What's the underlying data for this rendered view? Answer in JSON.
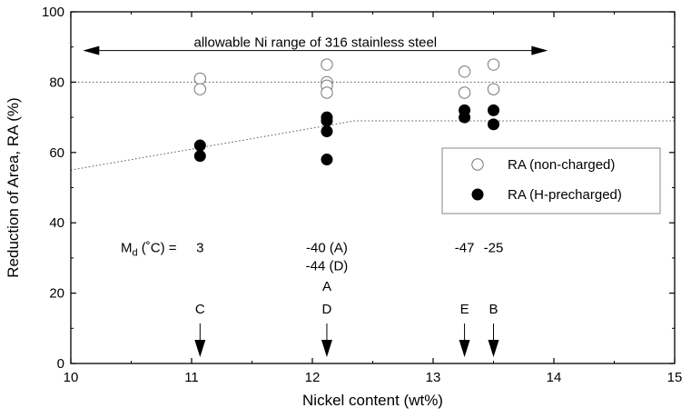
{
  "chart_data": {
    "type": "scatter",
    "xlabel": "Nickel content (wt%)",
    "ylabel": "Reduction of Area, RA (%)",
    "xlim": [
      10,
      15
    ],
    "ylim": [
      0,
      100
    ],
    "x_ticks": [
      "10",
      "11",
      "12",
      "13",
      "14",
      "15"
    ],
    "y_ticks": [
      "0",
      "20",
      "40",
      "60",
      "80",
      "100"
    ],
    "grid": false,
    "legend_position": "right",
    "series": [
      {
        "name": "RA (non-charged)",
        "marker": "open-circle",
        "points": [
          {
            "x": 11.07,
            "y": 81
          },
          {
            "x": 11.07,
            "y": 78
          },
          {
            "x": 12.12,
            "y": 85
          },
          {
            "x": 12.12,
            "y": 80
          },
          {
            "x": 12.12,
            "y": 79
          },
          {
            "x": 12.12,
            "y": 77
          },
          {
            "x": 13.26,
            "y": 83
          },
          {
            "x": 13.26,
            "y": 77
          },
          {
            "x": 13.5,
            "y": 85
          },
          {
            "x": 13.5,
            "y": 78
          }
        ]
      },
      {
        "name": "RA (H-precharged)",
        "marker": "filled-circle",
        "points": [
          {
            "x": 11.07,
            "y": 62
          },
          {
            "x": 11.07,
            "y": 59
          },
          {
            "x": 12.12,
            "y": 70
          },
          {
            "x": 12.12,
            "y": 69
          },
          {
            "x": 12.12,
            "y": 66
          },
          {
            "x": 12.12,
            "y": 58
          },
          {
            "x": 13.26,
            "y": 72
          },
          {
            "x": 13.26,
            "y": 70
          },
          {
            "x": 13.5,
            "y": 72
          },
          {
            "x": 13.5,
            "y": 68
          }
        ]
      }
    ],
    "reference_lines": [
      {
        "style": "dotted",
        "points": [
          [
            10,
            80
          ],
          [
            15,
            80
          ]
        ]
      },
      {
        "style": "dotted",
        "points": [
          [
            10,
            55
          ],
          [
            12.35,
            69
          ],
          [
            15,
            69
          ]
        ]
      }
    ],
    "range_arrow": {
      "from": 10.1,
      "to": 13.95,
      "y": 89,
      "label": "allowable Ni range of 316 stainless steel"
    },
    "md_label": {
      "main": "M",
      "sub": "d",
      "rest": " (˚C) ="
    },
    "md_values": [
      {
        "x": 11.07,
        "y": 33,
        "lines": [
          "3"
        ]
      },
      {
        "x": 12.12,
        "y": 33,
        "lines": [
          "-40 (A)",
          "-44 (D)"
        ]
      },
      {
        "x": 13.26,
        "y": 33,
        "lines": [
          "-47"
        ]
      },
      {
        "x": 13.5,
        "y": 33,
        "lines": [
          "-25"
        ]
      }
    ],
    "steel_markers": [
      {
        "x": 11.07,
        "labels": [
          "C"
        ]
      },
      {
        "x": 12.12,
        "labels": [
          "A",
          "D"
        ]
      },
      {
        "x": 13.26,
        "labels": [
          "E"
        ]
      },
      {
        "x": 13.5,
        "labels": [
          "B"
        ]
      }
    ]
  }
}
